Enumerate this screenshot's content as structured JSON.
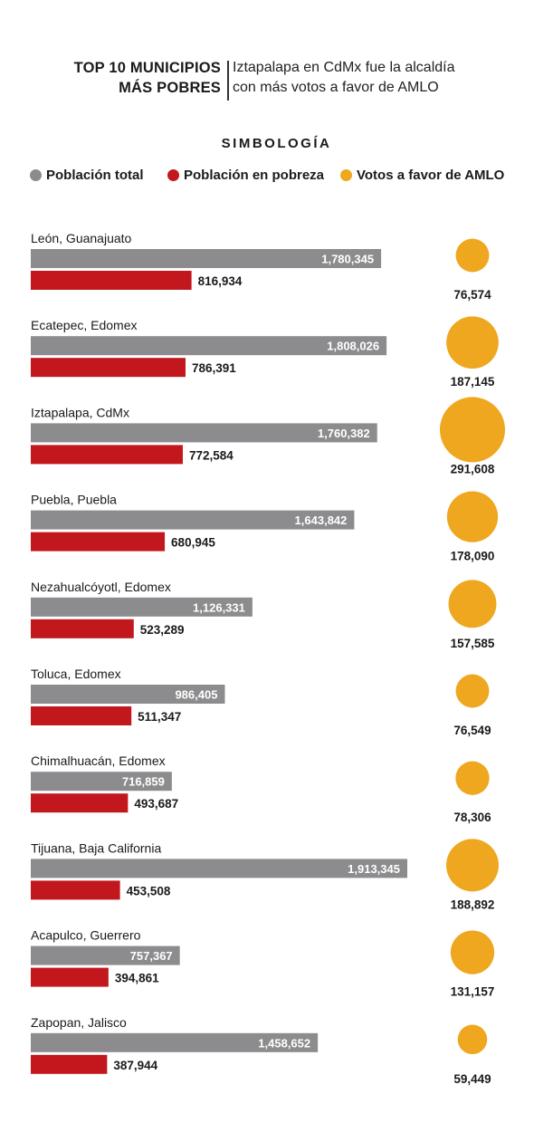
{
  "header": {
    "title_line1": "TOP 10 MUNICIPIOS",
    "title_line2": "MÁS POBRES",
    "subtitle_line1": "Iztapalapa en CdMx fue la alcaldía",
    "subtitle_line2": "con más votos a favor de AMLO"
  },
  "legend": {
    "title": "SIMBOLOGÍA",
    "items": [
      {
        "label": "Población total",
        "color": "#8c8c8e"
      },
      {
        "label": "Población en pobreza",
        "color": "#c1171d"
      },
      {
        "label": "Votos a favor de AMLO",
        "color": "#eea71e"
      }
    ]
  },
  "chart_data": {
    "type": "bar",
    "categories": [
      "León, Guanajuato",
      "Ecatepec, Edomex",
      "Iztapalapa, CdMx",
      "Puebla, Puebla",
      "Nezahualcóyotl, Edomex",
      "Toluca, Edomex",
      "Chimalhuacán, Edomex",
      "Tijuana, Baja California",
      "Acapulco, Guerrero",
      "Zapopan, Jalisco"
    ],
    "series": [
      {
        "name": "Población total",
        "color": "#8c8c8e",
        "values": [
          1780345,
          1808026,
          1760382,
          1643842,
          1126331,
          986405,
          716859,
          1913345,
          757367,
          1458652
        ],
        "labels": [
          "1,780,345",
          "1,808,026",
          "1,760,382",
          "1,643,842",
          "1,126,331",
          "986,405",
          "716,859",
          "1,913,345",
          "757,367",
          "1,458,652"
        ]
      },
      {
        "name": "Población en pobreza",
        "color": "#c1171d",
        "values": [
          816934,
          786391,
          772584,
          680945,
          523289,
          511347,
          493687,
          453508,
          394861,
          387944
        ],
        "labels": [
          "816,934",
          "786,391",
          "772,584",
          "680,945",
          "523,289",
          "511,347",
          "493,687",
          "453,508",
          "394,861",
          "387,944"
        ]
      },
      {
        "name": "Votos a favor de AMLO",
        "color": "#eea71e",
        "values": [
          76574,
          187145,
          291608,
          178090,
          157585,
          76549,
          78306,
          188892,
          131157,
          59449
        ],
        "labels": [
          "76,574",
          "187,145",
          "291,608",
          "178,090",
          "157,585",
          "76,549",
          "78,306",
          "188,892",
          "131,157",
          "59,449"
        ]
      }
    ]
  }
}
